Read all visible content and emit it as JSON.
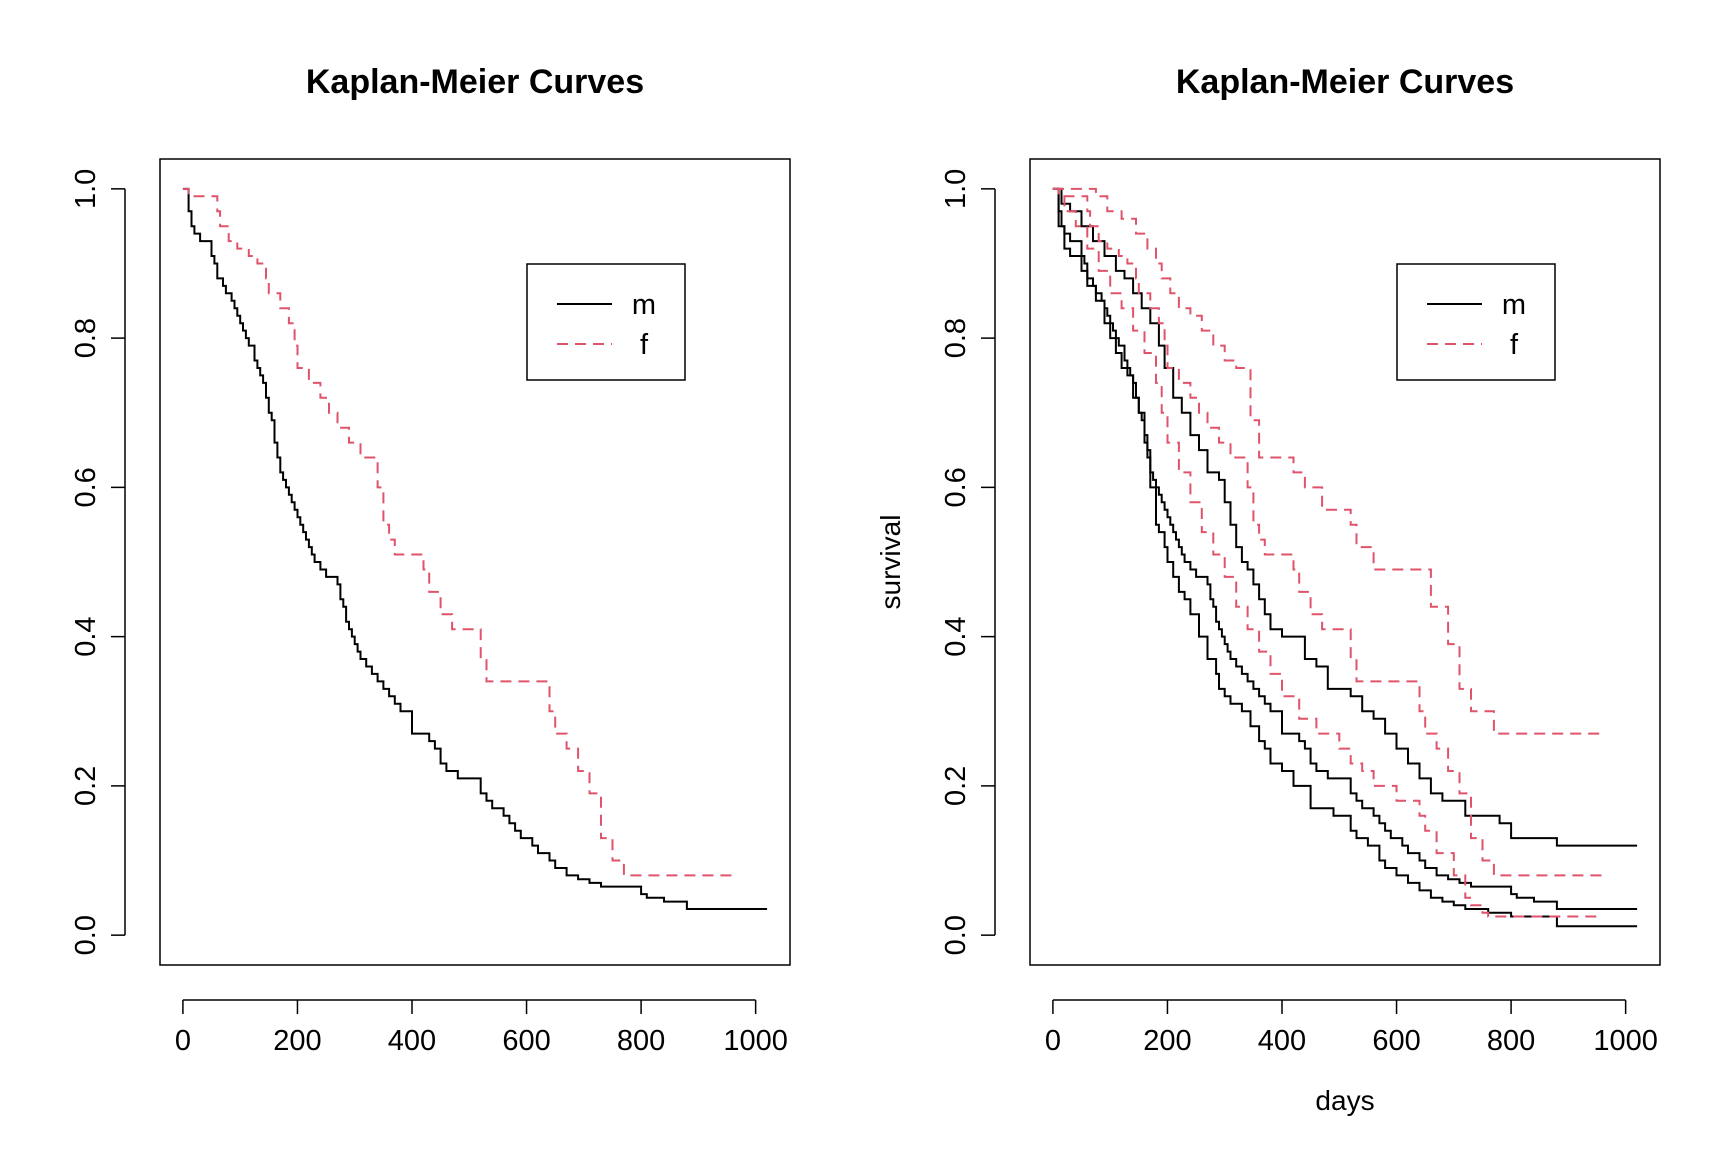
{
  "chart_data": [
    {
      "type": "line",
      "title": "Kaplan-Meier Curves",
      "xlabel": "",
      "ylabel": "",
      "xlim": [
        -40,
        1060
      ],
      "ylim": [
        -0.04,
        1.04
      ],
      "x_ticks": [
        "0",
        "200",
        "400",
        "600",
        "800",
        "1000"
      ],
      "y_ticks": [
        "0.0",
        "0.2",
        "0.4",
        "0.6",
        "0.8",
        "1.0"
      ],
      "grid": false,
      "legend": {
        "position": "top-right",
        "entries": [
          "m",
          "f"
        ]
      },
      "colors": {
        "m": "#000000",
        "f": "#DF536B"
      },
      "series": [
        {
          "name": "m",
          "style": "solid",
          "x": [
            0,
            10,
            15,
            20,
            30,
            50,
            55,
            60,
            70,
            75,
            85,
            90,
            95,
            100,
            105,
            110,
            115,
            125,
            130,
            135,
            140,
            145,
            150,
            155,
            160,
            165,
            170,
            175,
            180,
            185,
            190,
            195,
            200,
            205,
            210,
            215,
            220,
            225,
            230,
            240,
            250,
            270,
            275,
            280,
            285,
            290,
            295,
            300,
            305,
            310,
            320,
            330,
            340,
            350,
            360,
            370,
            380,
            400,
            430,
            440,
            450,
            460,
            480,
            520,
            530,
            540,
            560,
            570,
            580,
            590,
            610,
            620,
            640,
            650,
            670,
            690,
            710,
            730,
            800,
            810,
            840,
            880,
            1020
          ],
          "y": [
            1.0,
            0.97,
            0.95,
            0.94,
            0.93,
            0.91,
            0.9,
            0.88,
            0.87,
            0.86,
            0.85,
            0.84,
            0.83,
            0.82,
            0.81,
            0.8,
            0.79,
            0.77,
            0.76,
            0.75,
            0.74,
            0.72,
            0.7,
            0.69,
            0.66,
            0.64,
            0.62,
            0.61,
            0.6,
            0.59,
            0.58,
            0.57,
            0.56,
            0.55,
            0.54,
            0.53,
            0.52,
            0.51,
            0.5,
            0.49,
            0.48,
            0.47,
            0.45,
            0.44,
            0.42,
            0.41,
            0.4,
            0.39,
            0.38,
            0.37,
            0.36,
            0.35,
            0.34,
            0.33,
            0.32,
            0.31,
            0.3,
            0.27,
            0.26,
            0.25,
            0.23,
            0.22,
            0.21,
            0.19,
            0.18,
            0.17,
            0.16,
            0.15,
            0.14,
            0.13,
            0.12,
            0.11,
            0.1,
            0.09,
            0.08,
            0.075,
            0.07,
            0.065,
            0.055,
            0.05,
            0.045,
            0.035,
            0.035
          ]
        },
        {
          "name": "f",
          "style": "dashed",
          "x": [
            0,
            10,
            60,
            65,
            80,
            95,
            115,
            130,
            145,
            150,
            170,
            185,
            195,
            200,
            220,
            240,
            255,
            270,
            290,
            310,
            340,
            350,
            360,
            370,
            420,
            430,
            450,
            470,
            520,
            530,
            560,
            640,
            650,
            670,
            690,
            710,
            730,
            750,
            770,
            960
          ],
          "y": [
            1.0,
            0.99,
            0.97,
            0.95,
            0.93,
            0.92,
            0.91,
            0.9,
            0.88,
            0.86,
            0.84,
            0.82,
            0.79,
            0.76,
            0.74,
            0.72,
            0.7,
            0.68,
            0.66,
            0.64,
            0.6,
            0.55,
            0.53,
            0.51,
            0.49,
            0.46,
            0.43,
            0.41,
            0.37,
            0.34,
            0.34,
            0.3,
            0.27,
            0.25,
            0.22,
            0.19,
            0.13,
            0.1,
            0.08,
            0.08
          ]
        }
      ]
    },
    {
      "type": "line",
      "title": "Kaplan-Meier Curves",
      "xlabel": "days",
      "ylabel": "survival",
      "xlim": [
        -40,
        1060
      ],
      "ylim": [
        -0.04,
        1.04
      ],
      "x_ticks": [
        "0",
        "200",
        "400",
        "600",
        "800",
        "1000"
      ],
      "y_ticks": [
        "0.0",
        "0.2",
        "0.4",
        "0.6",
        "0.8",
        "1.0"
      ],
      "grid": false,
      "legend": {
        "position": "top-right",
        "entries": [
          "m",
          "f"
        ]
      },
      "colors": {
        "m": "#000000",
        "f": "#DF536B"
      },
      "series": [
        {
          "name": "m",
          "style": "solid",
          "x": [
            0,
            10,
            15,
            20,
            30,
            50,
            55,
            60,
            70,
            75,
            85,
            90,
            95,
            100,
            105,
            110,
            115,
            125,
            130,
            135,
            140,
            145,
            150,
            155,
            160,
            165,
            170,
            175,
            180,
            185,
            190,
            195,
            200,
            205,
            210,
            215,
            220,
            225,
            230,
            240,
            250,
            270,
            275,
            280,
            285,
            290,
            295,
            300,
            305,
            310,
            320,
            330,
            340,
            350,
            360,
            370,
            380,
            400,
            430,
            440,
            450,
            460,
            480,
            520,
            530,
            540,
            560,
            570,
            580,
            590,
            610,
            620,
            640,
            650,
            670,
            690,
            710,
            730,
            800,
            810,
            840,
            880,
            1020
          ],
          "y": [
            1.0,
            0.97,
            0.95,
            0.94,
            0.93,
            0.91,
            0.9,
            0.88,
            0.87,
            0.86,
            0.85,
            0.84,
            0.83,
            0.82,
            0.81,
            0.8,
            0.79,
            0.77,
            0.76,
            0.75,
            0.74,
            0.72,
            0.7,
            0.69,
            0.66,
            0.64,
            0.62,
            0.61,
            0.6,
            0.59,
            0.58,
            0.57,
            0.56,
            0.55,
            0.54,
            0.53,
            0.52,
            0.51,
            0.5,
            0.49,
            0.48,
            0.47,
            0.45,
            0.44,
            0.42,
            0.41,
            0.4,
            0.39,
            0.38,
            0.37,
            0.36,
            0.35,
            0.34,
            0.33,
            0.32,
            0.31,
            0.3,
            0.27,
            0.26,
            0.25,
            0.23,
            0.22,
            0.21,
            0.19,
            0.18,
            0.17,
            0.16,
            0.15,
            0.14,
            0.13,
            0.12,
            0.11,
            0.1,
            0.09,
            0.08,
            0.075,
            0.07,
            0.065,
            0.055,
            0.05,
            0.045,
            0.035,
            0.035
          ]
        },
        {
          "name": "m upper",
          "style": "solid",
          "x": [
            0,
            15,
            30,
            50,
            70,
            90,
            110,
            125,
            140,
            155,
            170,
            185,
            195,
            210,
            225,
            240,
            255,
            270,
            290,
            300,
            310,
            320,
            330,
            340,
            350,
            360,
            370,
            380,
            400,
            440,
            460,
            480,
            520,
            540,
            560,
            580,
            600,
            620,
            640,
            660,
            680,
            720,
            780,
            800,
            880,
            1020
          ],
          "y": [
            1.0,
            0.98,
            0.97,
            0.95,
            0.93,
            0.91,
            0.89,
            0.88,
            0.86,
            0.84,
            0.82,
            0.79,
            0.76,
            0.72,
            0.7,
            0.67,
            0.65,
            0.62,
            0.61,
            0.58,
            0.55,
            0.52,
            0.5,
            0.49,
            0.47,
            0.45,
            0.43,
            0.41,
            0.4,
            0.37,
            0.36,
            0.33,
            0.32,
            0.3,
            0.29,
            0.27,
            0.25,
            0.23,
            0.21,
            0.19,
            0.18,
            0.16,
            0.15,
            0.13,
            0.12,
            0.12
          ]
        },
        {
          "name": "m lower",
          "style": "solid",
          "x": [
            0,
            10,
            20,
            30,
            50,
            60,
            75,
            90,
            100,
            110,
            120,
            130,
            140,
            150,
            160,
            165,
            170,
            180,
            185,
            195,
            200,
            210,
            220,
            230,
            240,
            255,
            270,
            285,
            290,
            300,
            310,
            330,
            345,
            360,
            370,
            380,
            400,
            420,
            450,
            490,
            520,
            530,
            550,
            570,
            580,
            600,
            620,
            640,
            660,
            680,
            700,
            720,
            760,
            800,
            880,
            1020
          ],
          "y": [
            1.0,
            0.95,
            0.92,
            0.91,
            0.89,
            0.87,
            0.85,
            0.82,
            0.8,
            0.78,
            0.76,
            0.75,
            0.72,
            0.7,
            0.67,
            0.65,
            0.6,
            0.55,
            0.54,
            0.52,
            0.5,
            0.48,
            0.46,
            0.45,
            0.43,
            0.4,
            0.37,
            0.35,
            0.33,
            0.32,
            0.31,
            0.3,
            0.28,
            0.26,
            0.25,
            0.23,
            0.22,
            0.2,
            0.17,
            0.16,
            0.14,
            0.13,
            0.12,
            0.1,
            0.09,
            0.08,
            0.07,
            0.06,
            0.05,
            0.045,
            0.04,
            0.035,
            0.03,
            0.025,
            0.012,
            0.012
          ]
        },
        {
          "name": "f",
          "style": "dashed",
          "x": [
            0,
            10,
            60,
            65,
            80,
            95,
            115,
            130,
            145,
            150,
            170,
            185,
            195,
            200,
            220,
            240,
            255,
            270,
            290,
            310,
            340,
            350,
            360,
            370,
            420,
            430,
            450,
            470,
            520,
            530,
            560,
            640,
            650,
            670,
            690,
            710,
            730,
            750,
            770,
            960
          ],
          "y": [
            1.0,
            0.99,
            0.97,
            0.95,
            0.93,
            0.92,
            0.91,
            0.9,
            0.88,
            0.86,
            0.84,
            0.82,
            0.79,
            0.76,
            0.74,
            0.72,
            0.7,
            0.68,
            0.66,
            0.64,
            0.6,
            0.55,
            0.53,
            0.51,
            0.49,
            0.46,
            0.43,
            0.41,
            0.37,
            0.34,
            0.34,
            0.3,
            0.27,
            0.25,
            0.22,
            0.19,
            0.13,
            0.1,
            0.08,
            0.08
          ]
        },
        {
          "name": "f upper",
          "style": "dashed",
          "x": [
            0,
            75,
            95,
            120,
            145,
            165,
            180,
            190,
            205,
            220,
            240,
            260,
            280,
            300,
            320,
            345,
            360,
            375,
            420,
            440,
            470,
            520,
            530,
            560,
            640,
            660,
            690,
            710,
            730,
            770,
            960
          ],
          "y": [
            1.0,
            0.99,
            0.97,
            0.96,
            0.94,
            0.92,
            0.9,
            0.88,
            0.86,
            0.84,
            0.83,
            0.81,
            0.79,
            0.77,
            0.76,
            0.69,
            0.64,
            0.64,
            0.62,
            0.6,
            0.57,
            0.55,
            0.52,
            0.49,
            0.49,
            0.44,
            0.39,
            0.33,
            0.3,
            0.27,
            0.27
          ]
        },
        {
          "name": "f lower",
          "style": "dashed",
          "x": [
            0,
            20,
            40,
            60,
            80,
            100,
            120,
            140,
            160,
            180,
            190,
            200,
            220,
            240,
            260,
            280,
            300,
            320,
            340,
            360,
            380,
            400,
            430,
            460,
            500,
            520,
            540,
            560,
            600,
            640,
            650,
            670,
            700,
            720,
            730,
            750,
            760,
            960
          ],
          "y": [
            1.0,
            0.97,
            0.95,
            0.92,
            0.89,
            0.86,
            0.84,
            0.81,
            0.78,
            0.74,
            0.7,
            0.66,
            0.62,
            0.58,
            0.54,
            0.51,
            0.48,
            0.44,
            0.41,
            0.38,
            0.35,
            0.32,
            0.29,
            0.27,
            0.25,
            0.23,
            0.22,
            0.2,
            0.18,
            0.16,
            0.14,
            0.11,
            0.08,
            0.05,
            0.04,
            0.03,
            0.025,
            0.025
          ]
        }
      ]
    }
  ]
}
